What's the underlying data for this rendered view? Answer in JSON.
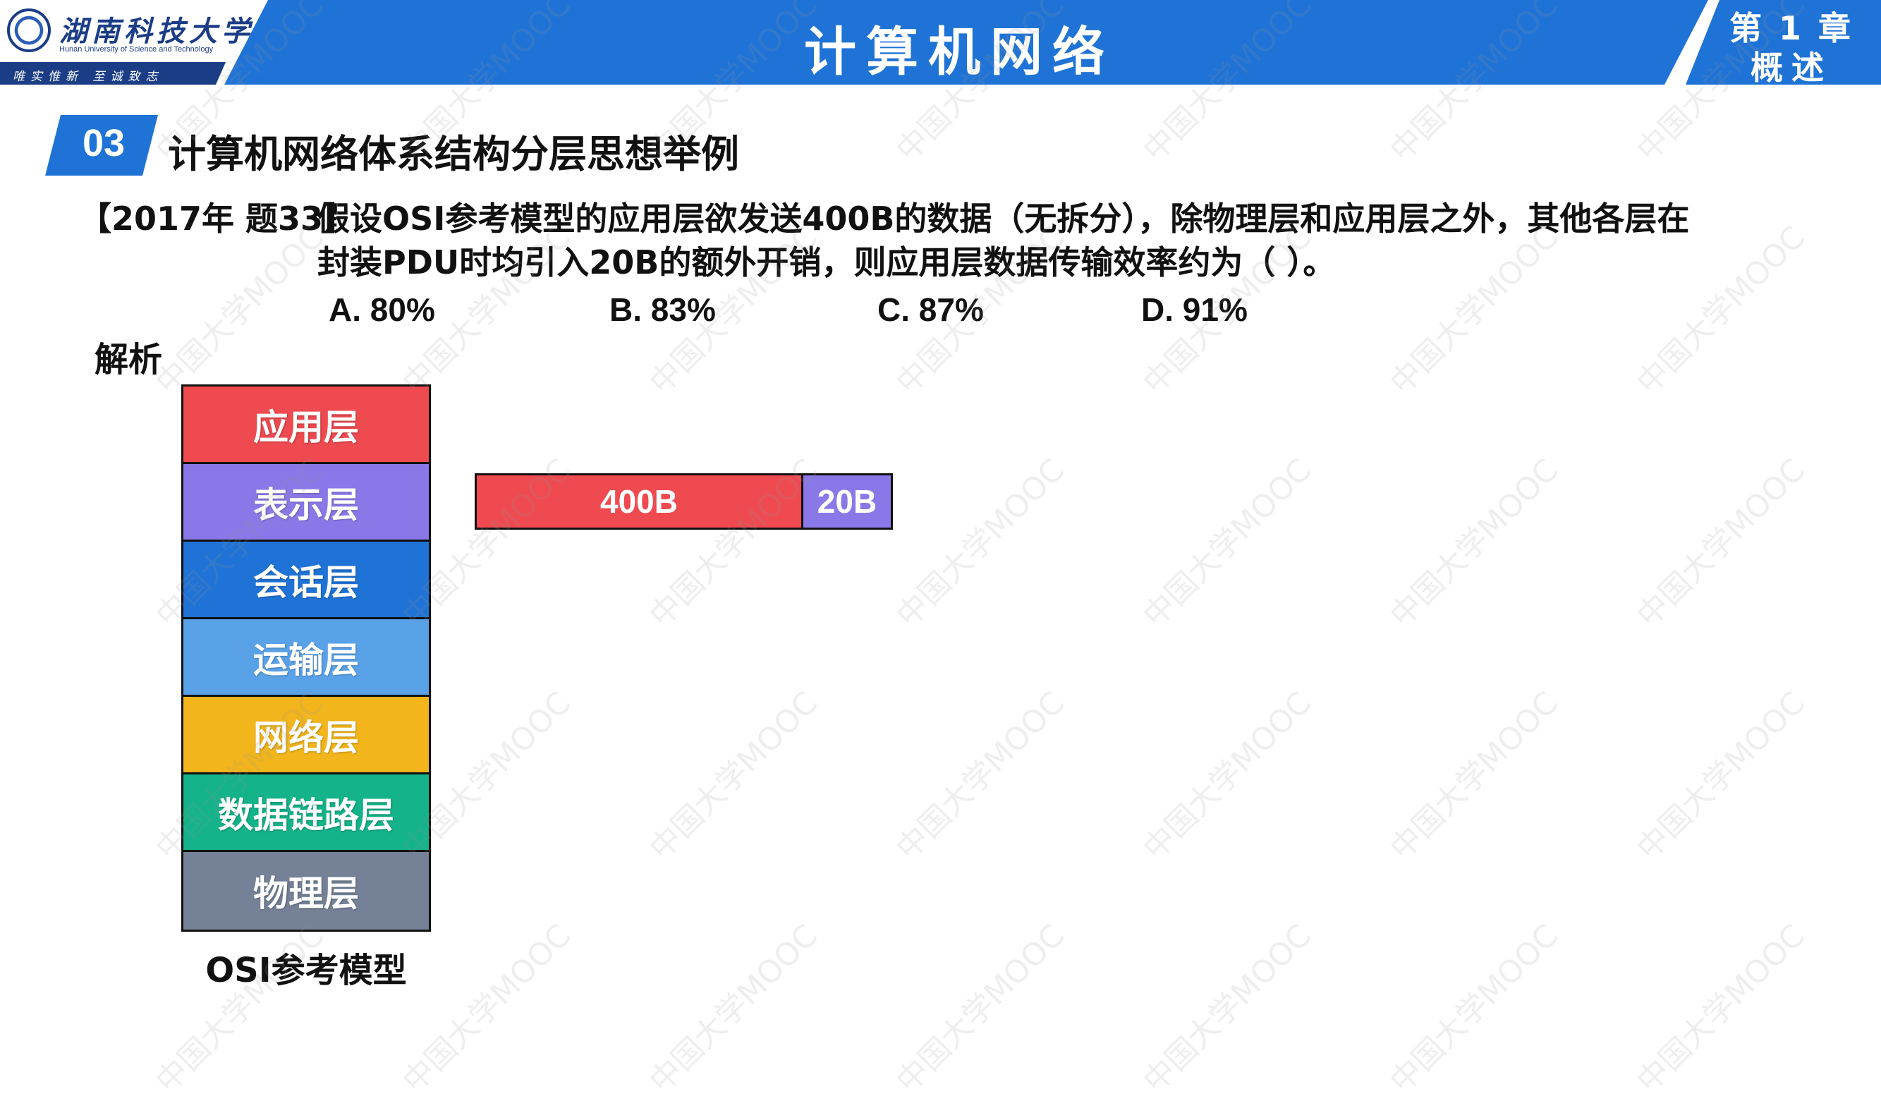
{
  "header": {
    "university_cn": "湖南科技大学",
    "university_en": "Hunan University of Science and Technology",
    "motto": "唯实惟新  至诚致志",
    "course_title": "计算机网络",
    "chapter_line1": "第 1 章",
    "chapter_line2": "概述"
  },
  "section": {
    "number": "03",
    "title": "计算机网络体系结构分层思想举例"
  },
  "question": {
    "tag": "【2017年 题33】",
    "line1": "假设OSI参考模型的应用层欲发送400B的数据（无拆分），除物理层和应用层之外，其他各层在",
    "line2": "封装PDU时均引入20B的额外开销，则应用层数据传输效率约为（     ）。",
    "options": [
      "A. 80%",
      "B. 83%",
      "C. 87%",
      "D. 91%"
    ]
  },
  "analysis_label": "解析",
  "osi": {
    "caption": "OSI参考模型",
    "layers": [
      {
        "label": "应用层",
        "color": "#ee4a50"
      },
      {
        "label": "表示层",
        "color": "#8b78e8"
      },
      {
        "label": "会话层",
        "color": "#1f73d6"
      },
      {
        "label": "运输层",
        "color": "#5aa2e8"
      },
      {
        "label": "网络层",
        "color": "#f2b51c"
      },
      {
        "label": "数据链路层",
        "color": "#14b389"
      },
      {
        "label": "物理层",
        "color": "#748196"
      }
    ]
  },
  "packet": {
    "data_label": "400B",
    "data_color": "#ee4a50",
    "header_label": "20B",
    "header_color": "#8b78e8"
  },
  "watermark": "中国大学MOOC"
}
